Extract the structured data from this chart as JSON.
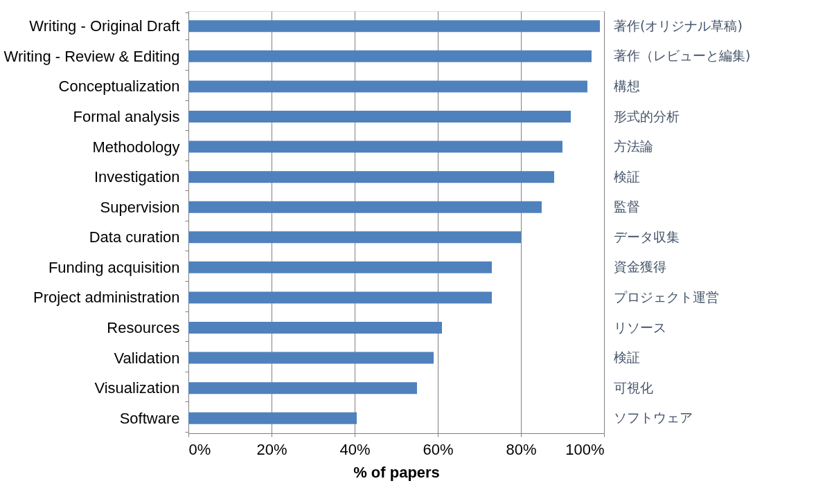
{
  "chart_data": {
    "type": "bar",
    "orientation": "horizontal",
    "xlabel": "% of papers",
    "categories": [
      "Writing - Original Draft",
      "Writing - Review & Editing",
      "Conceptualization",
      "Formal analysis",
      "Methodology",
      "Investigation",
      "Supervision",
      "Data curation",
      "Funding acquisition",
      "Project administration",
      "Resources",
      "Validation",
      "Visualization",
      "Software"
    ],
    "values": [
      99,
      97,
      96,
      92,
      90,
      88,
      85,
      80,
      73,
      73,
      61,
      59,
      55,
      40.5
    ],
    "color": "#4f81bd",
    "xlim": [
      0,
      100
    ],
    "xticks": [
      {
        "value": 0,
        "label": "0%"
      },
      {
        "value": 20,
        "label": "20%"
      },
      {
        "value": 40,
        "label": "40%"
      },
      {
        "value": 60,
        "label": "60%"
      },
      {
        "value": 80,
        "label": "80%"
      },
      {
        "value": 100,
        "label": "100%"
      }
    ],
    "grid": "x",
    "annotations": [
      "著作(オリジナル草稿)",
      "著作（レビューと編集)",
      "構想",
      "形式的分析",
      "方法論",
      "検証",
      "監督",
      "データ収集",
      "資金獲得",
      "プロジェクト運営",
      "リソース",
      "検証",
      "可視化",
      "ソフトウェア"
    ]
  }
}
